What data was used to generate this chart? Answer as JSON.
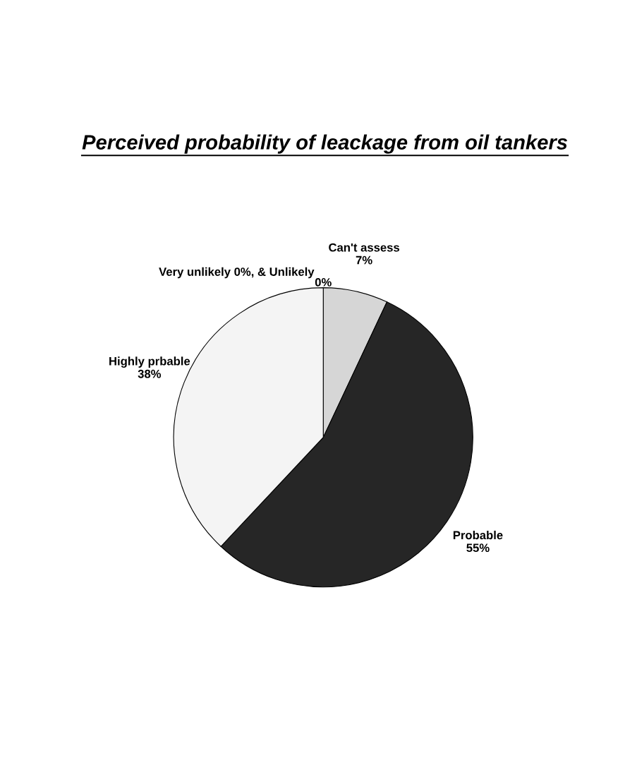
{
  "chart_data": {
    "type": "pie",
    "title": "Perceived probability of leackage from oil tankers",
    "categories": [
      "Very unlikely 0%, & Unlikely",
      "Can't assess",
      "Probable",
      "Highly prbable"
    ],
    "values": [
      0,
      7,
      55,
      38
    ],
    "value_labels": [
      "0%",
      "7%",
      "55%",
      "38%"
    ],
    "colors": [
      "#ffffff",
      "#d6d6d6",
      "#262626",
      "#f4f4f4"
    ]
  }
}
